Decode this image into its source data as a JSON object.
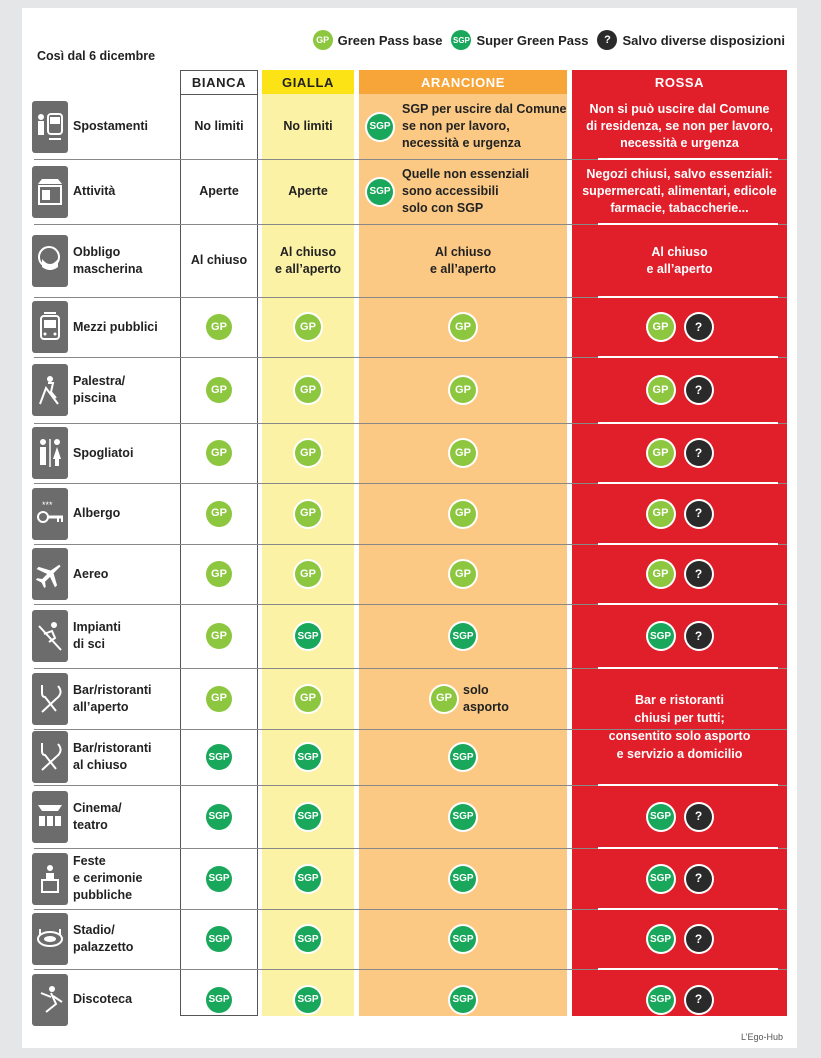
{
  "legend": {
    "gp": {
      "badge": "GP",
      "label": "Green Pass base"
    },
    "sgp": {
      "badge": "SGP",
      "label": "Super Green Pass"
    },
    "q": {
      "badge": "?",
      "label": "Salvo diverse disposizioni"
    }
  },
  "subtitle": "Così dal 6 dicembre",
  "columns": {
    "bianca": "BIANCA",
    "gialla": "GIALLA",
    "arancione": "ARANCIONE",
    "rossa": "ROSSA"
  },
  "colors": {
    "bianca": "#ffffff",
    "gialla": "#fcf2a6",
    "arancione": "#fbc984",
    "rossa": "#e01f2b",
    "gp": "#8dc63f",
    "sgp": "#19a85b"
  },
  "rows": [
    {
      "icon": "train-person-icon",
      "label": [
        "Spostamenti"
      ],
      "bianca": "No limiti",
      "gialla": "No limiti",
      "arancione": {
        "badge": "SGP",
        "text": [
          "SGP per uscire dal Comune",
          "se non per lavoro,",
          "necessità e urgenza"
        ]
      },
      "rossa": [
        "Non si può uscire dal Comune",
        "di residenza, se non per lavoro,",
        "necessità e urgenza"
      ]
    },
    {
      "icon": "shop-icon",
      "label": [
        "Attività"
      ],
      "bianca": "Aperte",
      "gialla": "Aperte",
      "arancione": {
        "badge": "SGP",
        "text": [
          "Quelle non essenziali",
          "sono accessibili",
          "solo con SGP"
        ]
      },
      "rossa": [
        "Negozi chiusi, salvo essenziali:",
        "supermercati, alimentari, edicole",
        "farmacie, tabaccherie..."
      ]
    },
    {
      "icon": "face-mask-icon",
      "label": [
        "Obbligo",
        "mascherina"
      ],
      "bianca": "Al chiuso",
      "gialla": [
        "Al chiuso",
        "e all’aperto"
      ],
      "arancione": [
        "Al chiuso",
        "e all’aperto"
      ],
      "rossa": [
        "Al chiuso",
        "e all’aperto"
      ]
    },
    {
      "icon": "tram-icon",
      "label": [
        "Mezzi pubblici"
      ],
      "bianca": "GP",
      "gialla": "GP",
      "arancione": "GP",
      "rossa": [
        "GP",
        "?"
      ]
    },
    {
      "icon": "exercise-bike-icon",
      "label": [
        "Palestra/",
        "piscina"
      ],
      "bianca": "GP",
      "gialla": "GP",
      "arancione": "GP",
      "rossa": [
        "GP",
        "?"
      ]
    },
    {
      "icon": "restroom-icon",
      "label": [
        "Spogliatoi"
      ],
      "bianca": "GP",
      "gialla": "GP",
      "arancione": "GP",
      "rossa": [
        "GP",
        "?"
      ]
    },
    {
      "icon": "hotel-key-icon",
      "label": [
        "Albergo"
      ],
      "bianca": "GP",
      "gialla": "GP",
      "arancione": "GP",
      "rossa": [
        "GP",
        "?"
      ]
    },
    {
      "icon": "airplane-icon",
      "label": [
        "Aereo"
      ],
      "bianca": "GP",
      "gialla": "GP",
      "arancione": "GP",
      "rossa": [
        "GP",
        "?"
      ]
    },
    {
      "icon": "ski-icon",
      "label": [
        "Impianti",
        "di sci"
      ],
      "bianca": "GP",
      "gialla": "SGP",
      "arancione": "SGP",
      "rossa": [
        "SGP",
        "?"
      ]
    },
    {
      "icon": "cutlery-icon",
      "label": [
        "Bar/ristoranti",
        "all’aperto"
      ],
      "bianca": "GP",
      "gialla": "GP",
      "arancione": {
        "badge": "GP",
        "text": [
          "solo",
          "asporto"
        ]
      },
      "rossa": null
    },
    {
      "icon": "cutlery-icon",
      "label": [
        "Bar/ristoranti",
        "al chiuso"
      ],
      "bianca": "SGP",
      "gialla": "SGP",
      "arancione": "SGP",
      "rossa": null
    },
    {
      "icon": "cinema-seats-icon",
      "label": [
        "Cinema/",
        "teatro"
      ],
      "bianca": "SGP",
      "gialla": "SGP",
      "arancione": "SGP",
      "rossa": [
        "SGP",
        "?"
      ]
    },
    {
      "icon": "ceremony-podium-icon",
      "label": [
        "Feste",
        "e cerimonie",
        "pubbliche"
      ],
      "bianca": "SGP",
      "gialla": "SGP",
      "arancione": "SGP",
      "rossa": [
        "SGP",
        "?"
      ]
    },
    {
      "icon": "stadium-icon",
      "label": [
        "Stadio/",
        "palazzetto"
      ],
      "bianca": "SGP",
      "gialla": "SGP",
      "arancione": "SGP",
      "rossa": [
        "SGP",
        "?"
      ]
    },
    {
      "icon": "dancer-icon",
      "label": [
        "Discoteca"
      ],
      "bianca": "SGP",
      "gialla": "SGP",
      "arancione": "SGP",
      "rossa": [
        "SGP",
        "?"
      ]
    }
  ],
  "rossa_merged": [
    "Bar e ristoranti",
    "chiusi per tutti;",
    "consentito solo asporto",
    "e servizio a domicilio"
  ],
  "credit": "L’Ego-Hub"
}
